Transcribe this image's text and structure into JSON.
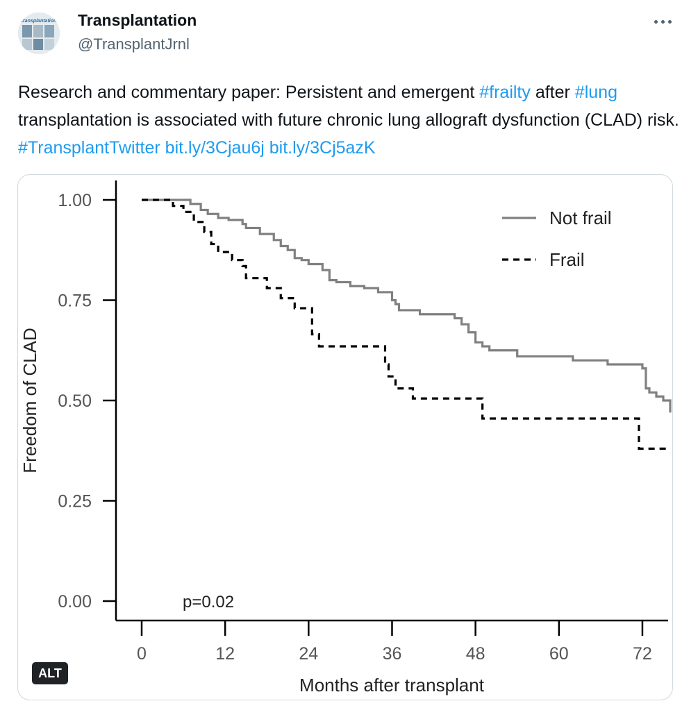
{
  "author": {
    "name": "Transplantation",
    "handle": "@TransplantJrnl",
    "avatar_text": "transplantation"
  },
  "tweet": {
    "text_parts": [
      {
        "text": "Research and commentary paper:  Persistent and emergent ",
        "link": false
      },
      {
        "text": "#frailty",
        "link": true
      },
      {
        "text": " after ",
        "link": false
      },
      {
        "text": "#lung",
        "link": true
      },
      {
        "text": " transplantation is associated with future chronic lung allograft dysfunction (CLAD) risk. ",
        "link": false
      },
      {
        "text": "#TransplantTwitter",
        "link": true
      },
      {
        "text": " ",
        "link": false
      },
      {
        "text": "bit.ly/3Cjau6j",
        "link": true
      },
      {
        "text": " ",
        "link": false
      },
      {
        "text": "bit.ly/3Cj5azK",
        "link": true
      }
    ]
  },
  "media": {
    "alt_badge": "ALT"
  },
  "chart_data": {
    "type": "line",
    "step": true,
    "xlabel": "Months after transplant",
    "ylabel": "Freedom of CLAD",
    "xlim": [
      0,
      76
    ],
    "ylim": [
      0,
      1
    ],
    "x_ticks": [
      0,
      12,
      24,
      36,
      48,
      60,
      72
    ],
    "y_ticks": [
      "0.00",
      "0.25",
      "0.50",
      "0.75",
      "1.00"
    ],
    "annotation": "p=0.02",
    "legend_position": "top-right",
    "series": [
      {
        "name": "Not frail",
        "style": "solid",
        "color": "#808080",
        "x": [
          0,
          7,
          8.5,
          9.5,
          11,
          12.5,
          14.5,
          15,
          17,
          19,
          20,
          21,
          22,
          23,
          24,
          26,
          27,
          28,
          30,
          32,
          34,
          36,
          36.5,
          37,
          38,
          40,
          45,
          46,
          47,
          48,
          49,
          50,
          54,
          62,
          67,
          72,
          72.5,
          73,
          74,
          75,
          76
        ],
        "y": [
          1.0,
          0.99,
          0.975,
          0.965,
          0.955,
          0.95,
          0.94,
          0.93,
          0.915,
          0.9,
          0.885,
          0.875,
          0.855,
          0.85,
          0.84,
          0.825,
          0.8,
          0.795,
          0.785,
          0.78,
          0.77,
          0.75,
          0.74,
          0.725,
          0.725,
          0.715,
          0.705,
          0.69,
          0.67,
          0.645,
          0.635,
          0.625,
          0.61,
          0.6,
          0.59,
          0.58,
          0.53,
          0.52,
          0.51,
          0.5,
          0.47
        ]
      },
      {
        "name": "Frail",
        "style": "dashed",
        "color": "#000000",
        "x": [
          0,
          4.5,
          6,
          7.5,
          9,
          10,
          11,
          13,
          14.5,
          15,
          18,
          20,
          22,
          24.5,
          25.5,
          35,
          35.5,
          36.5,
          39,
          49,
          71.5,
          76
        ],
        "y": [
          1.0,
          0.985,
          0.97,
          0.945,
          0.92,
          0.89,
          0.87,
          0.85,
          0.835,
          0.805,
          0.78,
          0.755,
          0.73,
          0.665,
          0.635,
          0.59,
          0.56,
          0.53,
          0.505,
          0.455,
          0.38,
          0.38
        ]
      }
    ]
  }
}
